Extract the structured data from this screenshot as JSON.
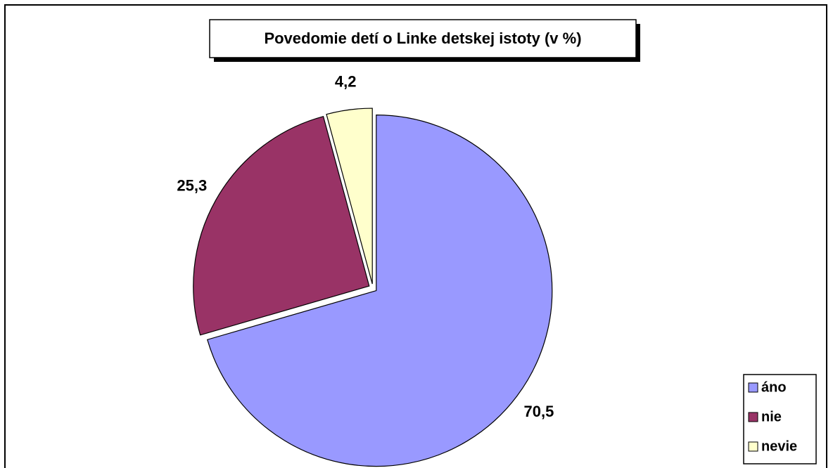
{
  "chart_data": {
    "type": "pie",
    "title": "Povedomie detí o Linke detskej istoty (v %)",
    "categories": [
      "áno",
      "nie",
      "nevie"
    ],
    "values": [
      70.5,
      25.3,
      4.2
    ],
    "value_labels": [
      "70,5",
      "25,3",
      "4,2"
    ],
    "colors": [
      "#9999ff",
      "#993366",
      "#ffffcc"
    ],
    "legend": "bottom-right"
  }
}
